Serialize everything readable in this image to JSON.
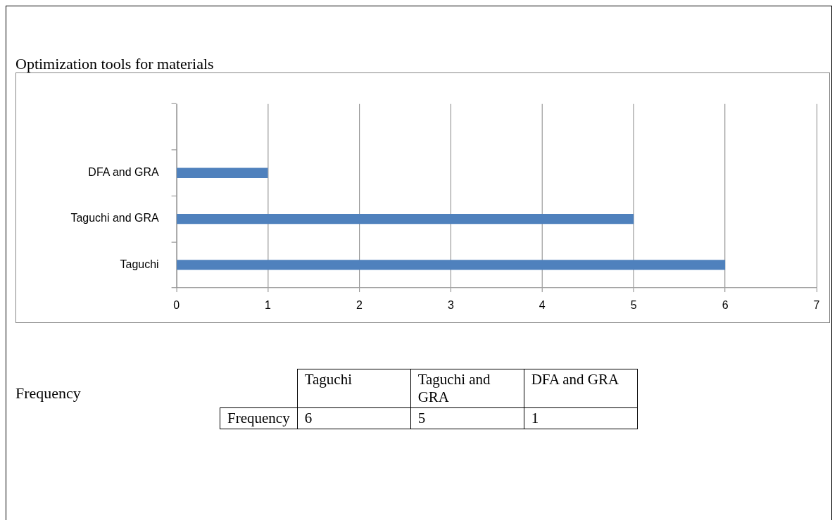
{
  "chart_data": [
    {
      "type": "bar",
      "orientation": "horizontal",
      "title": "Optimization tools for materials",
      "categories": [
        null,
        "DFA and GRA",
        "Taguchi and GRA",
        "Taguchi"
      ],
      "series": [
        {
          "color": "#4f81bd",
          "values": [
            null,
            1,
            5,
            6
          ]
        }
      ],
      "xlim": [
        0,
        7
      ],
      "xticks": [
        0,
        1,
        2,
        3,
        4,
        5,
        6,
        7
      ],
      "grid": "x",
      "legend": false
    },
    {
      "type": "other",
      "title": "Frequency",
      "categories": [
        "Taguchi",
        "Taguchi and GRA",
        "DFA and GRA"
      ],
      "series": [
        {
          "name": "Frequency",
          "values": [
            6,
            5,
            1
          ]
        }
      ],
      "data_labels": true
    }
  ]
}
